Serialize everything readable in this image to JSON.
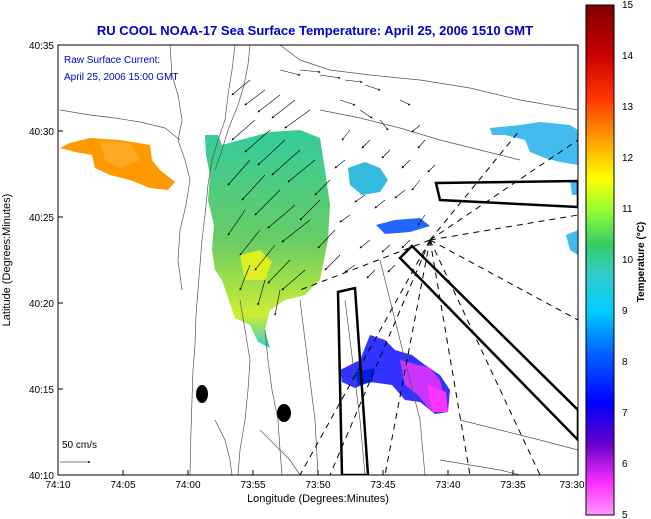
{
  "title": "RU COOL  NOAA-17  Sea Surface Temperature:  April 25, 2006 1510 GMT",
  "annotation": {
    "line1": "Raw Surface Current:",
    "line2": "April 25, 2006 15:00 GMT"
  },
  "scale_label": "50 cm/s",
  "x_axis": {
    "label": "Longitude (Degrees:Minutes)",
    "ticks": [
      "74:10",
      "74:05",
      "74:00",
      "73:55",
      "73:50",
      "73:45",
      "73:40",
      "73:35",
      "73:30"
    ]
  },
  "y_axis": {
    "label": "Latitude (Degrees:Minutes)",
    "ticks": [
      "40:35",
      "40:30",
      "40:25",
      "40:20",
      "40:15",
      "40:10"
    ]
  },
  "colorbar": {
    "label": "Temperature (°C)",
    "ticks": [
      "15",
      "14",
      "13",
      "12",
      "11",
      "10",
      "9",
      "8",
      "7",
      "6",
      "5"
    ],
    "colors": [
      "#8b0000",
      "#ff0000",
      "#ff6600",
      "#ffcc00",
      "#ccff33",
      "#33cc66",
      "#33cccc",
      "#33aaff",
      "#0033ff",
      "#6600cc",
      "#ff33ff",
      "#ff99ff"
    ]
  },
  "colors": {
    "title": "#0000cc",
    "frame": "#000000"
  }
}
